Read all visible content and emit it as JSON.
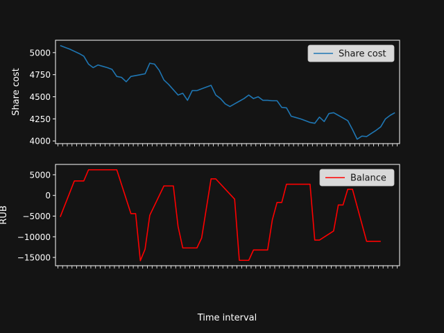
{
  "figure": {
    "xlabel": "Time interval",
    "background": "#141414",
    "axes_color": "#ffffff"
  },
  "chart_data": [
    {
      "type": "line",
      "ylabel": "Share cost",
      "ylim": [
        3970,
        5140
      ],
      "yticks": [
        4000,
        4250,
        4500,
        4750,
        5000
      ],
      "legend": "top-right",
      "grid": false,
      "series": [
        {
          "name": "Share cost",
          "color": "#1f77b4",
          "points": [
            [
              1,
              5080
            ],
            [
              2,
              5060
            ],
            [
              3,
              5040
            ],
            [
              4,
              5015
            ],
            [
              5,
              4990
            ],
            [
              6,
              4960
            ],
            [
              7,
              4870
            ],
            [
              8,
              4830
            ],
            [
              9,
              4860
            ],
            [
              10,
              4845
            ],
            [
              11,
              4830
            ],
            [
              12,
              4810
            ],
            [
              13,
              4730
            ],
            [
              14,
              4720
            ],
            [
              15,
              4670
            ],
            [
              16,
              4730
            ],
            [
              17,
              4740
            ],
            [
              18,
              4750
            ],
            [
              19,
              4760
            ],
            [
              20,
              4880
            ],
            [
              21,
              4870
            ],
            [
              22,
              4800
            ],
            [
              23,
              4690
            ],
            [
              24,
              4640
            ],
            [
              25,
              4580
            ],
            [
              26,
              4520
            ],
            [
              27,
              4540
            ],
            [
              28,
              4460
            ],
            [
              29,
              4570
            ],
            [
              30,
              4570
            ],
            [
              31,
              4590
            ],
            [
              32,
              4610
            ],
            [
              33,
              4630
            ],
            [
              34,
              4520
            ],
            [
              35,
              4480
            ],
            [
              36,
              4420
            ],
            [
              37,
              4390
            ],
            [
              38,
              4420
            ],
            [
              39,
              4450
            ],
            [
              40,
              4480
            ],
            [
              41,
              4520
            ],
            [
              42,
              4480
            ],
            [
              43,
              4500
            ],
            [
              44,
              4460
            ],
            [
              45,
              4460
            ],
            [
              46,
              4455
            ],
            [
              47,
              4455
            ],
            [
              48,
              4380
            ],
            [
              49,
              4375
            ],
            [
              50,
              4280
            ],
            [
              51,
              4265
            ],
            [
              52,
              4250
            ],
            [
              53,
              4230
            ],
            [
              54,
              4210
            ],
            [
              55,
              4200
            ],
            [
              56,
              4270
            ],
            [
              57,
              4220
            ],
            [
              58,
              4310
            ],
            [
              59,
              4320
            ],
            [
              60,
              4290
            ],
            [
              61,
              4260
            ],
            [
              62,
              4230
            ],
            [
              63,
              4130
            ],
            [
              64,
              4020
            ],
            [
              65,
              4055
            ],
            [
              66,
              4050
            ],
            [
              67,
              4085
            ],
            [
              68,
              4120
            ],
            [
              69,
              4160
            ],
            [
              70,
              4250
            ],
            [
              71,
              4290
            ],
            [
              72,
              4320
            ]
          ]
        }
      ]
    },
    {
      "type": "line",
      "ylabel": "RUB",
      "ylim": [
        -17000,
        7500
      ],
      "yticks": [
        -15000,
        -10000,
        -5000,
        0,
        5000
      ],
      "legend": "top-right",
      "grid": false,
      "series": [
        {
          "name": "Balance",
          "color": "#ff0000",
          "points": [
            [
              1,
              -5200
            ],
            [
              4,
              3500
            ],
            [
              6,
              3500
            ],
            [
              7,
              6200
            ],
            [
              13,
              6200
            ],
            [
              16,
              -4400
            ],
            [
              17,
              -4400
            ],
            [
              18,
              -15800
            ],
            [
              19,
              -13000
            ],
            [
              20,
              -4800
            ],
            [
              23,
              2300
            ],
            [
              25,
              2300
            ],
            [
              26,
              -7500
            ],
            [
              27,
              -12700
            ],
            [
              30,
              -12700
            ],
            [
              31,
              -10300
            ],
            [
              33,
              4000
            ],
            [
              34,
              4000
            ],
            [
              38,
              -900
            ],
            [
              39,
              -15700
            ],
            [
              41,
              -15700
            ],
            [
              42,
              -13200
            ],
            [
              45,
              -13200
            ],
            [
              46,
              -5900
            ],
            [
              47,
              -1700
            ],
            [
              48,
              -1700
            ],
            [
              49,
              2700
            ],
            [
              54,
              2700
            ],
            [
              55,
              -10800
            ],
            [
              56,
              -10800
            ],
            [
              59,
              -8600
            ],
            [
              60,
              -2300
            ],
            [
              61,
              -2300
            ],
            [
              62,
              1500
            ],
            [
              63,
              1500
            ],
            [
              66,
              -11100
            ],
            [
              69,
              -11100
            ]
          ]
        }
      ]
    }
  ]
}
